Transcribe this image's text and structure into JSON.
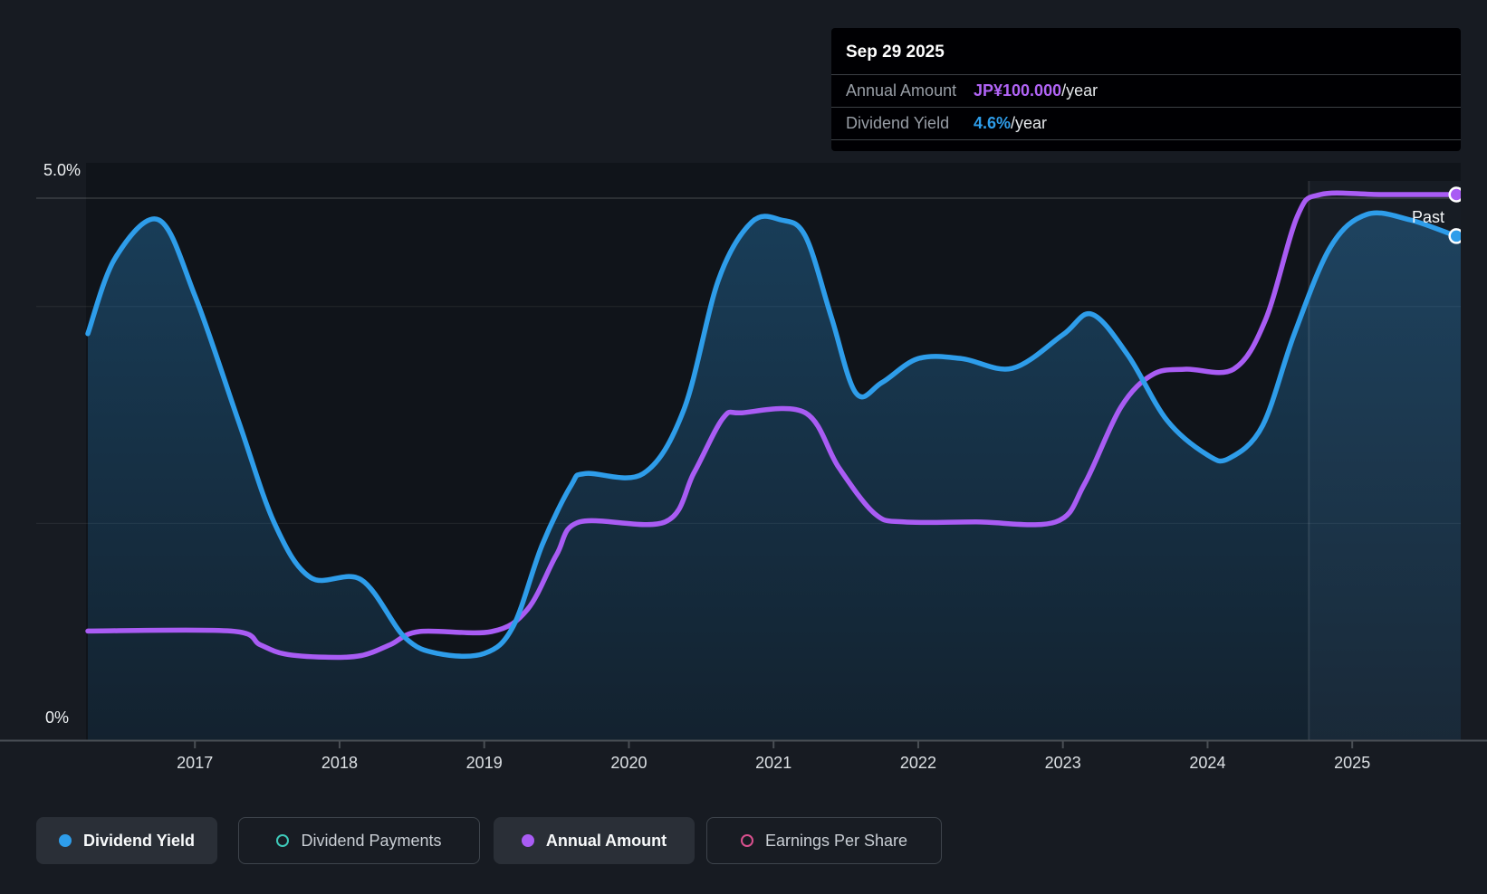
{
  "tooltip": {
    "date": "Sep 29 2025",
    "rows": [
      {
        "label": "Annual Amount",
        "value": "JP¥100.000",
        "suffix": "/year",
        "value_color": "#b164f6"
      },
      {
        "label": "Dividend Yield",
        "value": "4.6%",
        "suffix": "/year",
        "value_color": "#2e9dea"
      }
    ]
  },
  "labels": {
    "past": "Past"
  },
  "axes": {
    "y_top_label": "5.0%",
    "y_bottom_label": "0%",
    "x_labels": [
      "2017",
      "2018",
      "2019",
      "2020",
      "2021",
      "2022",
      "2023",
      "2024",
      "2025"
    ]
  },
  "legend": [
    {
      "id": "dividend-yield",
      "label": "Dividend Yield",
      "color": "#2e9dea",
      "marker": "filled",
      "active": true
    },
    {
      "id": "dividend-payments",
      "label": "Dividend Payments",
      "color": "#3ec9b9",
      "marker": "ring",
      "active": false
    },
    {
      "id": "annual-amount",
      "label": "Annual Amount",
      "color": "#a95cf4",
      "marker": "filled",
      "active": true
    },
    {
      "id": "earnings-per-share",
      "label": "Earnings Per Share",
      "color": "#d9508e",
      "marker": "ring",
      "active": false
    }
  ],
  "chart_data": {
    "type": "line",
    "title": "Dividend history and yield",
    "x_range": [
      2016.26,
      2025.75
    ],
    "y_axis": {
      "unit": "%",
      "min": 0,
      "max": 5,
      "gridlines_pct": [
        5.0,
        4.0,
        2.0
      ]
    },
    "divider_year": 2024.7,
    "marker_year": 2025.72,
    "legend_position": "bottom",
    "series": [
      {
        "name": "Dividend Yield",
        "unit": "%",
        "color": "#2e9dea",
        "area": true,
        "scale": "percent",
        "points": [
          [
            2016.26,
            3.75
          ],
          [
            2016.45,
            4.45
          ],
          [
            2016.75,
            4.8
          ],
          [
            2017.0,
            4.1
          ],
          [
            2017.3,
            2.95
          ],
          [
            2017.55,
            2.0
          ],
          [
            2017.8,
            1.5
          ],
          [
            2018.15,
            1.48
          ],
          [
            2018.45,
            0.95
          ],
          [
            2018.68,
            0.8
          ],
          [
            2019.0,
            0.8
          ],
          [
            2019.2,
            1.05
          ],
          [
            2019.4,
            1.8
          ],
          [
            2019.6,
            2.35
          ],
          [
            2019.7,
            2.46
          ],
          [
            2020.1,
            2.46
          ],
          [
            2020.38,
            3.05
          ],
          [
            2020.62,
            4.25
          ],
          [
            2020.85,
            4.78
          ],
          [
            2021.05,
            4.8
          ],
          [
            2021.22,
            4.65
          ],
          [
            2021.4,
            3.9
          ],
          [
            2021.57,
            3.2
          ],
          [
            2021.75,
            3.3
          ],
          [
            2022.0,
            3.52
          ],
          [
            2022.3,
            3.52
          ],
          [
            2022.65,
            3.43
          ],
          [
            2023.0,
            3.74
          ],
          [
            2023.2,
            3.93
          ],
          [
            2023.45,
            3.55
          ],
          [
            2023.72,
            2.95
          ],
          [
            2024.0,
            2.63
          ],
          [
            2024.15,
            2.6
          ],
          [
            2024.38,
            2.9
          ],
          [
            2024.6,
            3.75
          ],
          [
            2024.85,
            4.55
          ],
          [
            2025.1,
            4.85
          ],
          [
            2025.4,
            4.8
          ],
          [
            2025.72,
            4.65
          ],
          [
            2025.75,
            4.65
          ]
        ],
        "current_value": "4.6% per year"
      },
      {
        "name": "Annual Amount",
        "unit": "JP¥ per year",
        "color": "#a95cf4",
        "area": false,
        "scale": "amount",
        "amount_axis_max": 100,
        "points": [
          [
            2016.26,
            20
          ],
          [
            2017.25,
            20
          ],
          [
            2017.45,
            17.5
          ],
          [
            2017.62,
            15.8
          ],
          [
            2017.9,
            15.2
          ],
          [
            2018.15,
            15.5
          ],
          [
            2018.35,
            17.5
          ],
          [
            2018.55,
            19.9
          ],
          [
            2019.05,
            19.9
          ],
          [
            2019.3,
            24
          ],
          [
            2019.5,
            34
          ],
          [
            2019.66,
            40
          ],
          [
            2020.25,
            40
          ],
          [
            2020.45,
            49
          ],
          [
            2020.65,
            59
          ],
          [
            2020.78,
            60
          ],
          [
            2021.22,
            60
          ],
          [
            2021.45,
            50
          ],
          [
            2021.7,
            41.5
          ],
          [
            2021.9,
            40
          ],
          [
            2022.4,
            40
          ],
          [
            2022.95,
            40
          ],
          [
            2023.15,
            47
          ],
          [
            2023.4,
            61
          ],
          [
            2023.62,
            67
          ],
          [
            2023.85,
            68
          ],
          [
            2024.18,
            68
          ],
          [
            2024.4,
            77
          ],
          [
            2024.62,
            96
          ],
          [
            2024.78,
            100
          ],
          [
            2025.2,
            100
          ],
          [
            2025.75,
            100
          ]
        ],
        "current_value": "JP¥100.000 per year"
      }
    ]
  },
  "colors": {
    "page_bg": "#171b22",
    "plot_bg": "#10141a",
    "tooltip_bg": "#000003",
    "grid_bright": "rgba(255,255,255,0.16)",
    "grid_faint": "rgba(255,255,255,0.08)",
    "axis_line": "#4a4f55",
    "divider_line": "rgba(255,255,255,0.10)",
    "future_band": "rgba(150,190,235,0.05)",
    "area_fill_top": "rgba(45,156,232,0.30)",
    "area_fill_bottom": "rgba(45,156,232,0.10)"
  }
}
